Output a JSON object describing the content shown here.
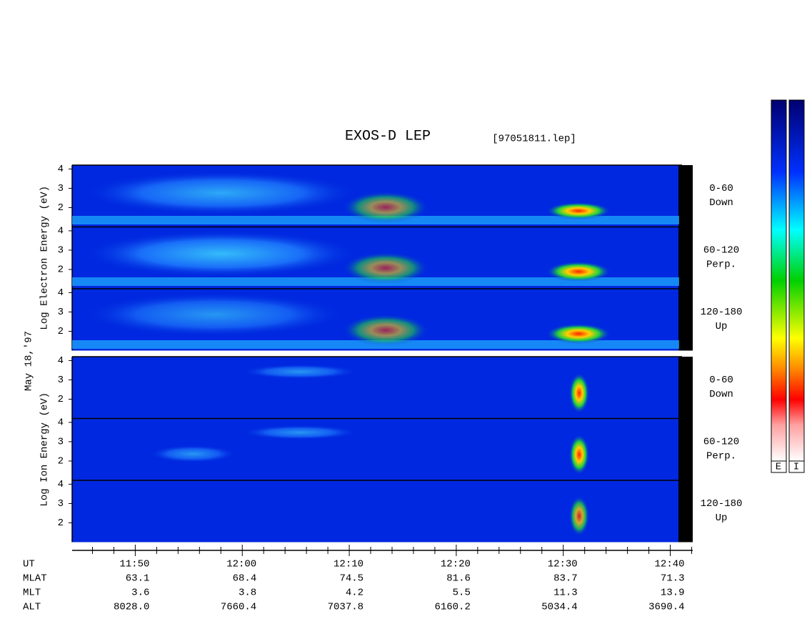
{
  "chart_data": {
    "type": "spectrogram",
    "title": "EXOS-D LEP",
    "subtitle": "[97051811.lep]",
    "date_label": "May 18,'97",
    "ylim": [
      1,
      4.2
    ],
    "yticks": [
      2,
      3,
      4
    ],
    "xlim": [
      704.1,
      762.1
    ],
    "xticks": [
      {
        "value": 710,
        "label": "11:50"
      },
      {
        "value": 720,
        "label": "12:00"
      },
      {
        "value": 730,
        "label": "12:10"
      },
      {
        "value": 740,
        "label": "12:20"
      },
      {
        "value": 750,
        "label": "12:30"
      },
      {
        "value": 760,
        "label": "12:40"
      }
    ],
    "xminor_ticks": [
      706,
      708,
      712,
      714,
      716,
      718,
      722,
      724,
      726,
      728,
      732,
      734,
      736,
      738,
      742,
      744,
      746,
      748,
      752,
      754,
      756,
      758,
      762
    ],
    "groups": [
      {
        "ylabel": "Log Electron Energy (eV)",
        "panels": [
          {
            "range": "0-60",
            "direction": "Down"
          },
          {
            "range": "60-120",
            "direction": "Perp."
          },
          {
            "range": "120-180",
            "direction": "Up"
          }
        ]
      },
      {
        "ylabel": "Log Ion Energy (eV)",
        "panels": [
          {
            "range": "0-60",
            "direction": "Down"
          },
          {
            "range": "60-120",
            "direction": "Perp."
          },
          {
            "range": "120-180",
            "direction": "Up"
          }
        ]
      }
    ],
    "table": {
      "x_label": "UT",
      "rows": [
        {
          "name": "MLAT",
          "values": [
            "63.1",
            "68.4",
            "74.5",
            "81.6",
            "83.7",
            "71.3"
          ]
        },
        {
          "name": "MLT",
          "values": [
            "3.6",
            "3.8",
            "4.2",
            "5.5",
            "11.3",
            "13.9"
          ]
        },
        {
          "name": "ALT",
          "values": [
            "8028.0",
            "7660.4",
            "7037.8",
            "6160.2",
            "5034.4",
            "3690.4"
          ]
        }
      ]
    },
    "colorbar_labels": [
      "E",
      "I"
    ]
  }
}
